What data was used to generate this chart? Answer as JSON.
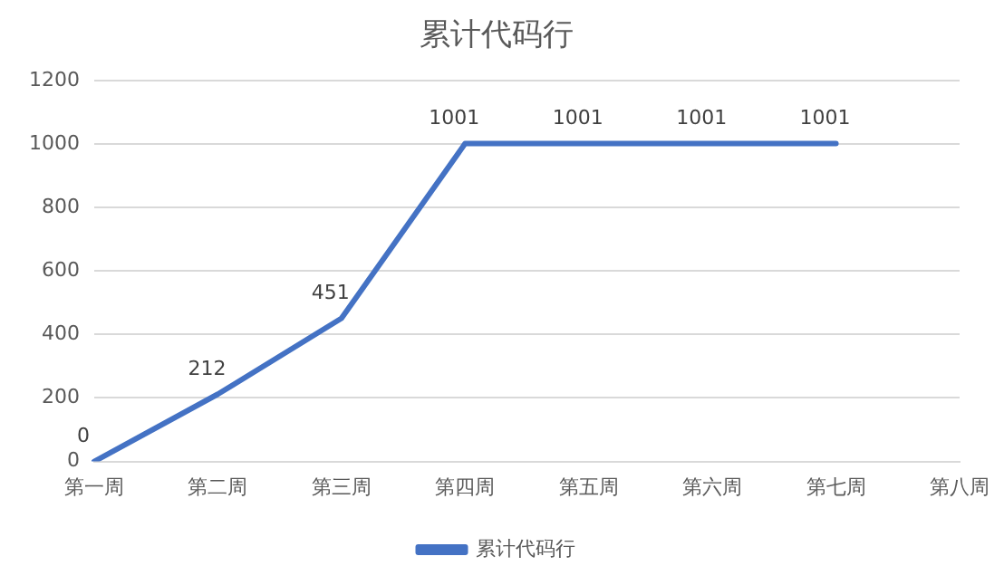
{
  "chart_data": {
    "type": "line",
    "title": "累计代码行",
    "categories": [
      "第一周",
      "第二周",
      "第三周",
      "第四周",
      "第五周",
      "第六周",
      "第七周",
      "第八周"
    ],
    "series": [
      {
        "name": "累计代码行",
        "color": "#4472c4",
        "values": [
          0,
          212,
          451,
          1001,
          1001,
          1001,
          1001,
          null
        ]
      }
    ],
    "ylim": [
      0,
      1200
    ],
    "yticks": [
      0,
      200,
      400,
      600,
      800,
      1000,
      1200
    ],
    "grid": "y",
    "legend": "bottom",
    "marker": "none",
    "line_style": "solid",
    "data_labels": true
  }
}
